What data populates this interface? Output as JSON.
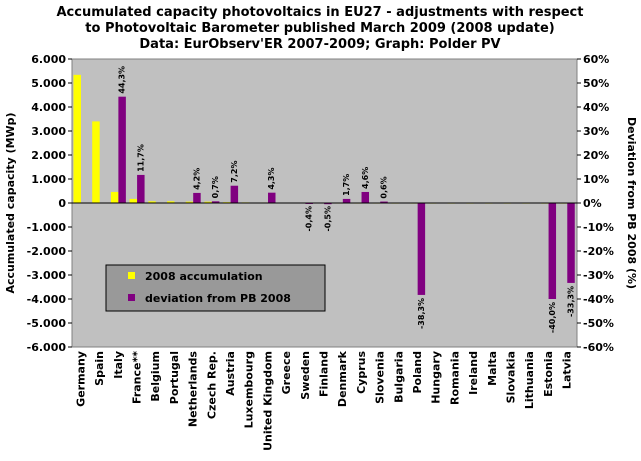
{
  "chart_data": {
    "type": "bar",
    "title_lines": [
      "Accumulated capacity photovoltaics in EU27 - adjustments with respect",
      "to Photovoltaic Barometer published March 2009 (2008 update)",
      "Data: EurObserv'ER 2007-2009; Graph: Polder PV"
    ],
    "ylabel": "Accumulated capacity (MWp)",
    "ylabel_right": "Deviation from PB 2008 (%)",
    "ylim": [
      -6000,
      6000
    ],
    "ylim_right": [
      -60,
      60
    ],
    "yticks": [
      "-6.000",
      "-5.000",
      "-4.000",
      "-3.000",
      "-2.000",
      "-1.000",
      "0",
      "1.000",
      "2.000",
      "3.000",
      "4.000",
      "5.000",
      "6.000"
    ],
    "yticks_right": [
      "-60%",
      "-50%",
      "-40%",
      "-30%",
      "-20%",
      "-10%",
      "0%",
      "10%",
      "20%",
      "30%",
      "40%",
      "50%",
      "60%"
    ],
    "categories": [
      "Germany",
      "Spain",
      "Italy",
      "France**",
      "Belgium",
      "Portugal",
      "Netherlands",
      "Czech Rep.",
      "Austria",
      "Luxembourg",
      "United Kingdom",
      "Greece",
      "Sweden",
      "Finland",
      "Denmark",
      "Cyprus",
      "Slovenia",
      "Bulgaria",
      "Poland",
      "Hungary",
      "Romania",
      "Ireland",
      "Malta",
      "Slovakia",
      "Lithuania",
      "Estonia",
      "Latvia"
    ],
    "series": [
      {
        "name": "2008 accumulation",
        "axis": "left",
        "color": "#ffff00",
        "values": [
          5340,
          3400,
          460,
          170,
          70,
          70,
          57,
          55,
          35,
          26,
          22,
          18,
          8,
          6,
          3,
          2,
          2,
          1,
          1,
          1,
          0.5,
          0.4,
          0.2,
          0.1,
          0.1,
          0.02,
          0.01
        ]
      },
      {
        "name": "deviation from PB 2008",
        "axis": "right",
        "color": "#800080",
        "values": [
          0,
          0,
          44.3,
          11.7,
          0,
          0,
          4.2,
          0.7,
          7.2,
          0,
          4.3,
          0,
          -0.4,
          -0.5,
          1.7,
          4.6,
          0.6,
          0,
          -38.3,
          0,
          0,
          0,
          0,
          0,
          0,
          -40.0,
          -33.3
        ],
        "labels": [
          "",
          "",
          "44,3%",
          "11,7%",
          "",
          "",
          "4,2%",
          "0,7%",
          "7,2%",
          "",
          "4,3%",
          "",
          "-0,4%",
          "-0,5%",
          "1,7%",
          "4,6%",
          "0,6%",
          "",
          "-38,3%",
          "",
          "",
          "",
          "",
          "",
          "",
          "-40,0%",
          "-33,3%"
        ]
      }
    ],
    "legend_position": "lower-left inside plot",
    "grid": false,
    "plot_background": "#c0c0c0"
  }
}
